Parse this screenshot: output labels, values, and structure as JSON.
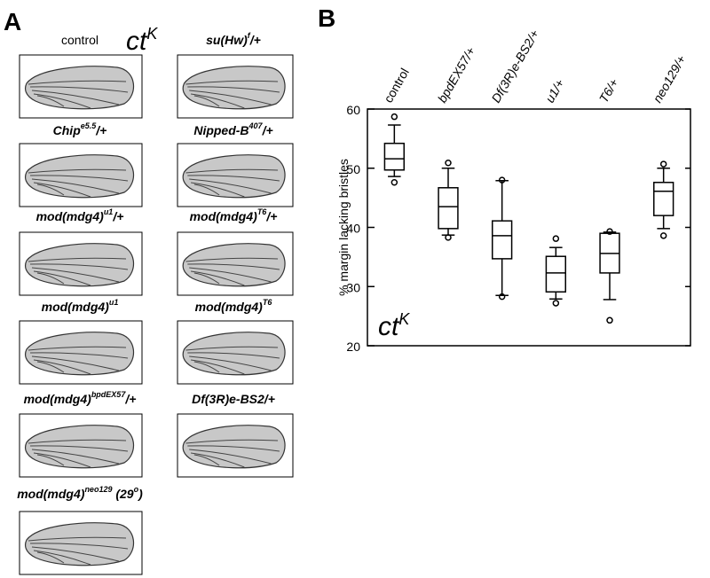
{
  "panel_a": {
    "panel_label": "A",
    "title": [
      {
        "t": "ct"
      },
      {
        "t": "K",
        "sup": true
      }
    ],
    "items": [
      {
        "label": [
          {
            "t": "control"
          }
        ],
        "italic": false
      },
      {
        "label": [
          {
            "t": "su(Hw)"
          },
          {
            "t": "f",
            "sup": true
          },
          {
            "t": "/+"
          }
        ],
        "italic": true
      },
      {
        "label": [
          {
            "t": "Chip"
          },
          {
            "t": "e5.5",
            "sup": true
          },
          {
            "t": "/+"
          }
        ],
        "italic": true
      },
      {
        "label": [
          {
            "t": "Nipped-B"
          },
          {
            "t": "407",
            "sup": true
          },
          {
            "t": "/+"
          }
        ],
        "italic": true
      },
      {
        "label": [
          {
            "t": "mod(mdg4)"
          },
          {
            "t": "u1",
            "sup": true
          },
          {
            "t": "/+"
          }
        ],
        "italic": true
      },
      {
        "label": [
          {
            "t": "mod(mdg4)"
          },
          {
            "t": "T6",
            "sup": true
          },
          {
            "t": "/+"
          }
        ],
        "italic": true
      },
      {
        "label": [
          {
            "t": "mod(mdg4)"
          },
          {
            "t": "u1",
            "sup": true
          }
        ],
        "italic": true
      },
      {
        "label": [
          {
            "t": "mod(mdg4)"
          },
          {
            "t": "T6",
            "sup": true
          }
        ],
        "italic": true
      },
      {
        "label": [
          {
            "t": "mod(mdg4)"
          },
          {
            "t": "bpdEX57",
            "sup": true
          },
          {
            "t": "/+"
          }
        ],
        "italic": true
      },
      {
        "label": [
          {
            "t": "Df(3R)e-BS2/+"
          }
        ],
        "italic": true
      },
      {
        "label": [
          {
            "t": "mod(mdg4)"
          },
          {
            "t": "neo129",
            "sup": true
          },
          {
            "t": " (29"
          },
          {
            "t": "o",
            "sup": true
          },
          {
            "t": ")"
          }
        ],
        "italic": true
      }
    ]
  },
  "chart_data": {
    "type": "box",
    "panel_label": "B",
    "y_label": "% margin lacking bristles",
    "annotation": [
      {
        "t": "ct"
      },
      {
        "t": "K",
        "sup": true
      }
    ],
    "categories": [
      "control",
      "bpdEX57/+",
      "Df(3R)e-BS2/+",
      "u1/+",
      "T6/+",
      "neo129/+"
    ],
    "category_italic": [
      false,
      true,
      true,
      true,
      true,
      true
    ],
    "boxes": [
      {
        "low": 48.6,
        "q1": 49.7,
        "median": 51.6,
        "q3": 54.2,
        "high": 57.3,
        "outliers": [
          58.7,
          47.6
        ]
      },
      {
        "low": 38.7,
        "q1": 39.8,
        "median": 43.5,
        "q3": 46.7,
        "high": 50.0,
        "outliers": [
          50.9,
          38.3
        ]
      },
      {
        "low": 28.5,
        "q1": 34.7,
        "median": 38.6,
        "q3": 41.1,
        "high": 47.9,
        "outliers": [
          48.0,
          28.3
        ]
      },
      {
        "low": 27.9,
        "q1": 29.1,
        "median": 32.3,
        "q3": 35.1,
        "high": 36.6,
        "outliers": [
          38.1,
          27.2
        ]
      },
      {
        "low": 27.8,
        "q1": 32.3,
        "median": 35.6,
        "q3": 39.0,
        "high": 39.2,
        "outliers": [
          39.3,
          24.3
        ]
      },
      {
        "low": 39.8,
        "q1": 42.0,
        "median": 46.1,
        "q3": 47.6,
        "high": 50.0,
        "outliers": [
          50.7,
          38.6
        ]
      }
    ],
    "ylim": [
      20,
      60
    ],
    "yticks": [
      20,
      30,
      40,
      50,
      60
    ],
    "color": "#000000"
  }
}
